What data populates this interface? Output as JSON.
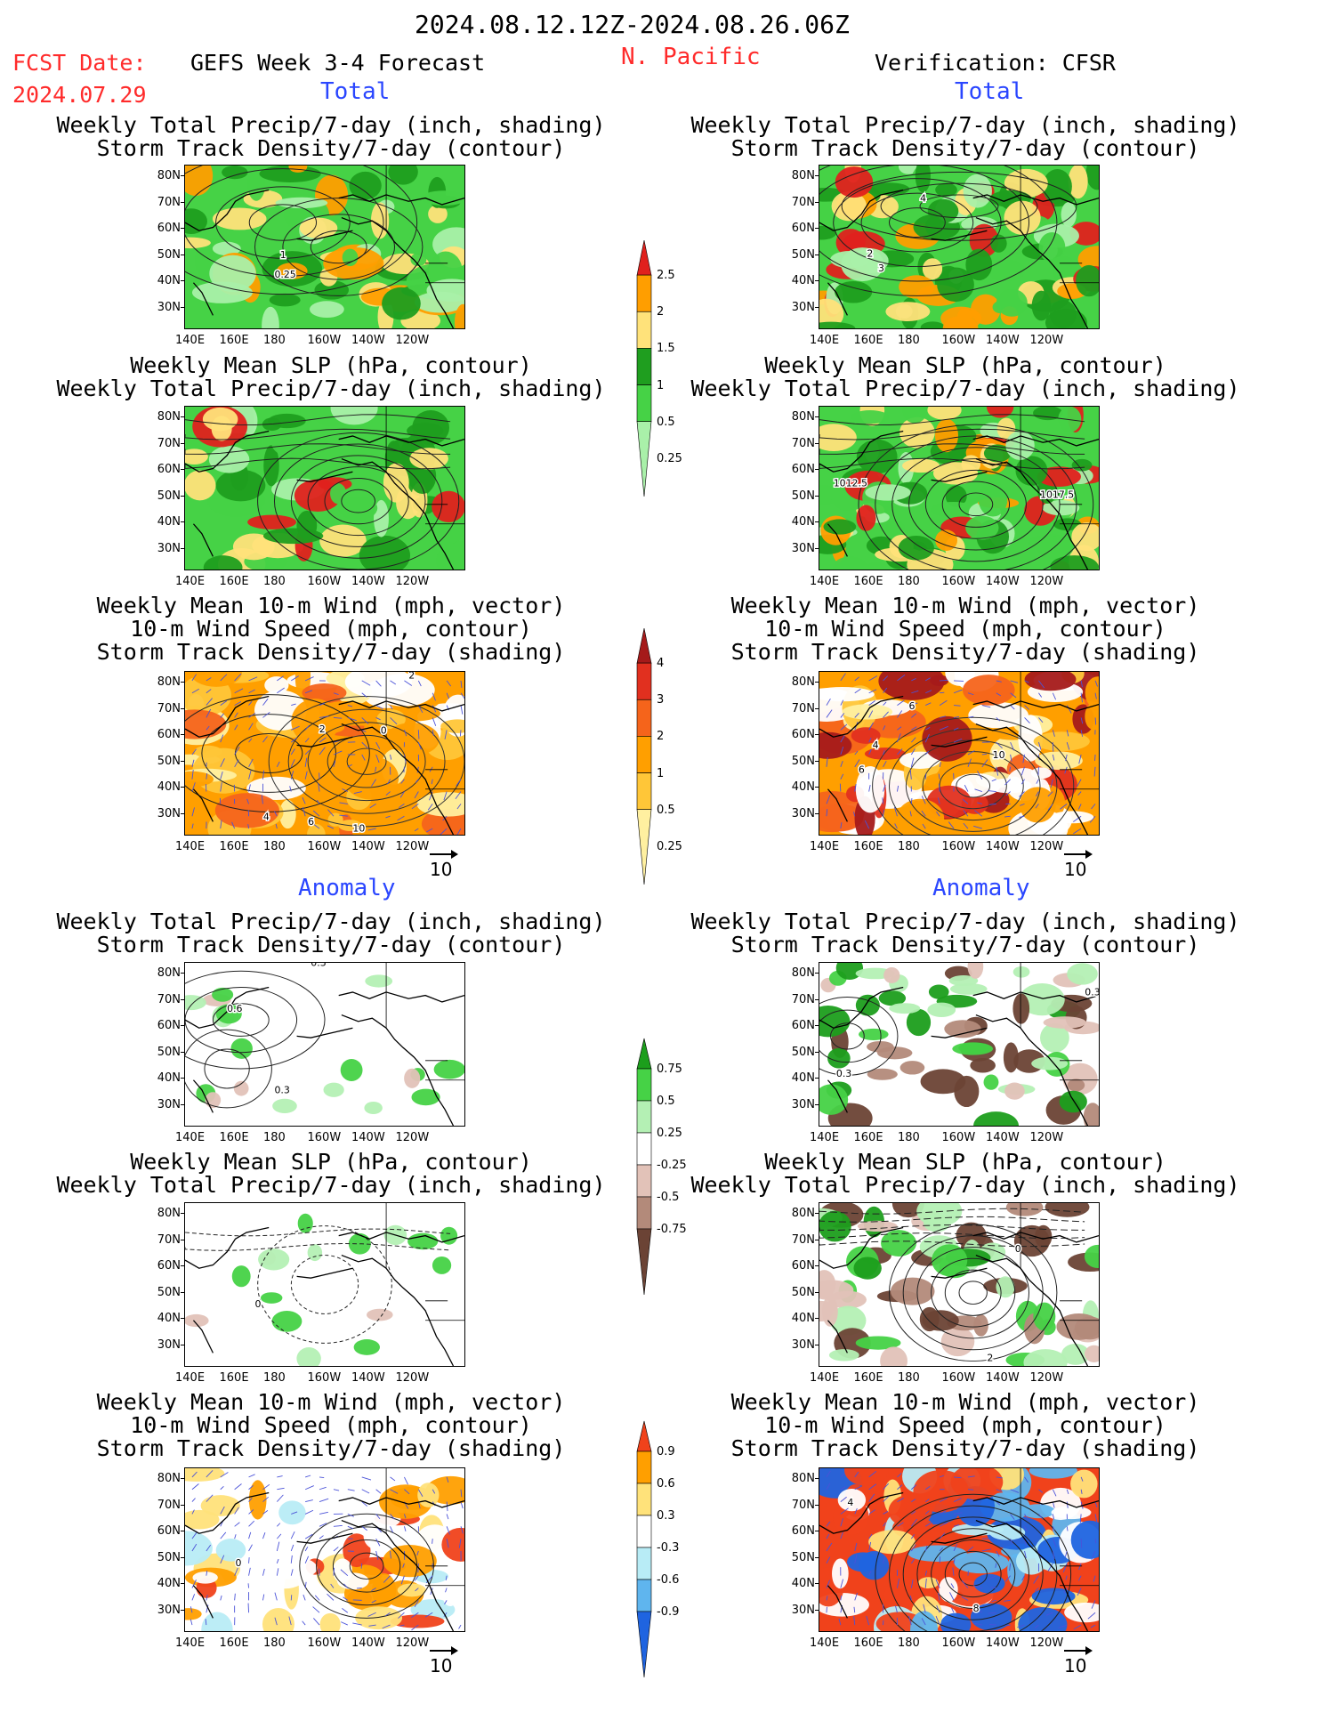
{
  "header": {
    "date_range": "2024.08.12.12Z-2024.08.26.06Z",
    "fcst_label": "FCST Date:",
    "fcst_date": "2024.07.29",
    "product": "GEFS Week 3-4 Forecast",
    "region": "N. Pacific",
    "verification": "Verification: CFSR"
  },
  "sections": {
    "total": "Total",
    "anomaly": "Anomaly"
  },
  "panel_titles": {
    "precip_track": [
      "Weekly Total Precip/7-day (inch, shading)",
      "Storm Track Density/7-day (contour)"
    ],
    "slp_precip": [
      "Weekly Mean SLP (hPa, contour)",
      "Weekly Total Precip/7-day (inch, shading)"
    ],
    "wind_track": [
      "Weekly Mean 10-m Wind (mph, vector)",
      "10-m Wind Speed (mph, contour)",
      "Storm Track Density/7-day (shading)"
    ]
  },
  "axes": {
    "lat": [
      "80N",
      "70N",
      "60N",
      "50N",
      "40N",
      "30N"
    ],
    "lon": [
      "140E",
      "160E",
      "180",
      "160W",
      "140W",
      "120W"
    ]
  },
  "vector_ref": "10",
  "colorbars": {
    "precip_total": {
      "labels": [
        "2.5",
        "2",
        "1.5",
        "1",
        "0.5",
        "0.25"
      ],
      "colors": [
        "#e0211d",
        "#ff9e00",
        "#ffe27a",
        "#1f9e1f",
        "#46d246",
        "#a9f0a9"
      ]
    },
    "track_total": {
      "labels": [
        "4",
        "3",
        "2",
        "1",
        "0.5",
        "0.25"
      ],
      "colors": [
        "#a51a1a",
        "#e1301f",
        "#f5641b",
        "#ff9f00",
        "#ffc638",
        "#fff0a0"
      ]
    },
    "precip_anom": {
      "labels": [
        "0.75",
        "0.5",
        "0.25",
        "-0.25",
        "-0.5",
        "-0.75"
      ],
      "colors": [
        "#1c9e1c",
        "#46d246",
        "#b4f0b4",
        "#ffffff",
        "#e2c2b8",
        "#b38a7a",
        "#6b4335"
      ]
    },
    "track_anom": {
      "labels": [
        "0.9",
        "0.6",
        "0.3",
        "-0.3",
        "-0.6",
        "-0.9"
      ],
      "colors": [
        "#f0421b",
        "#ff9f00",
        "#ffe27a",
        "#ffffff",
        "#b8ecf6",
        "#5fb5ee",
        "#1f64e0"
      ]
    }
  },
  "contour_labels": {
    "p1": [
      "1",
      "0.25"
    ],
    "p2": [
      "4",
      "2",
      "3"
    ],
    "p4": [
      "1012.5",
      "1017.5"
    ],
    "p5": [
      "2",
      "2",
      "0",
      "4",
      "6",
      "10"
    ],
    "p6": [
      "6",
      "4",
      "10",
      "6"
    ],
    "p7": [
      "0.3",
      "0.6",
      "0.3"
    ],
    "p8": [
      "0.3",
      "0.3"
    ],
    "p9": [
      "0"
    ],
    "p10": [
      "0",
      "2"
    ],
    "p11": [
      "0"
    ],
    "p12": [
      "4",
      "8"
    ]
  }
}
